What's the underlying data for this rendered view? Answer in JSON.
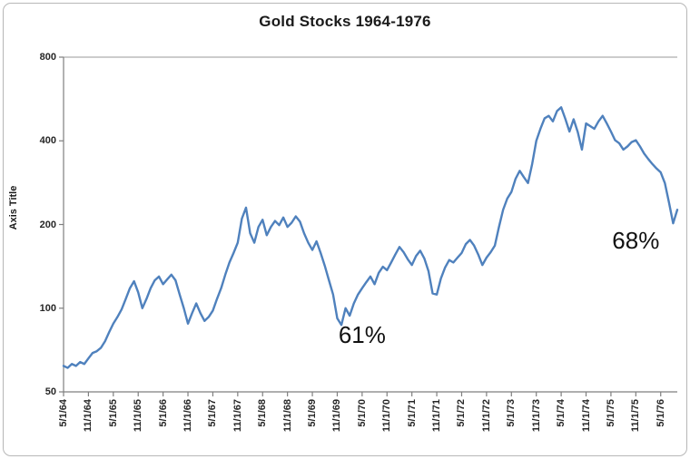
{
  "chart_data": {
    "type": "line",
    "title": "Gold Stocks 1964-1976",
    "y_axis_title": "Axis Title",
    "y_scale": "log2",
    "ylim": [
      50,
      800
    ],
    "y_ticks": [
      50,
      100,
      200,
      400,
      800
    ],
    "grid": "top-border-only",
    "legend": "none",
    "line_color": "#4F81BD",
    "axis_color": "#7f7f7f",
    "gridline_color": "#9a9a9a",
    "x_tick_labels": [
      "5/1/64",
      "11/1/64",
      "5/1/65",
      "11/1/65",
      "5/1/66",
      "11/1/66",
      "5/1/67",
      "11/1/67",
      "5/1/68",
      "11/1/68",
      "5/1/69",
      "11/1/69",
      "5/1/70",
      "11/1/70",
      "5/1/71",
      "11/1/71",
      "5/1/72",
      "11/1/72",
      "5/1/73",
      "11/1/73",
      "5/1/74",
      "11/1/74",
      "5/1/75",
      "11/1/75",
      "5/1/76"
    ],
    "x_tick_interval_months": 6,
    "series": [
      {
        "name": "Gold Stocks",
        "start_month": "1964-05",
        "frequency": "monthly",
        "values": [
          62,
          61,
          63,
          62,
          64,
          63,
          66,
          69,
          70,
          72,
          76,
          82,
          88,
          93,
          99,
          108,
          118,
          125,
          114,
          100,
          108,
          118,
          126,
          130,
          122,
          127,
          132,
          126,
          112,
          100,
          88,
          96,
          104,
          96,
          90,
          93,
          98,
          108,
          118,
          132,
          146,
          158,
          172,
          210,
          230,
          186,
          172,
          196,
          208,
          183,
          196,
          206,
          199,
          212,
          196,
          203,
          214,
          205,
          186,
          172,
          162,
          174,
          158,
          142,
          126,
          112,
          92,
          87,
          100,
          94,
          104,
          112,
          118,
          124,
          130,
          122,
          134,
          141,
          137,
          146,
          156,
          166,
          159,
          150,
          143,
          154,
          161,
          151,
          136,
          113,
          112,
          128,
          140,
          149,
          146,
          152,
          158,
          170,
          176,
          168,
          156,
          143,
          152,
          159,
          168,
          196,
          226,
          248,
          262,
          292,
          312,
          296,
          282,
          330,
          400,
          442,
          482,
          492,
          470,
          512,
          528,
          480,
          432,
          478,
          430,
          372,
          462,
          452,
          442,
          470,
          492,
          462,
          432,
          402,
          392,
          372,
          382,
          396,
          402,
          382,
          360,
          344,
          330,
          318,
          308,
          282,
          240,
          202,
          226
        ]
      }
    ],
    "annotations": [
      {
        "label": "61%",
        "x_index": 72,
        "y_value": 80
      },
      {
        "label": "68%",
        "x_index": 138,
        "y_value": 175
      }
    ]
  }
}
